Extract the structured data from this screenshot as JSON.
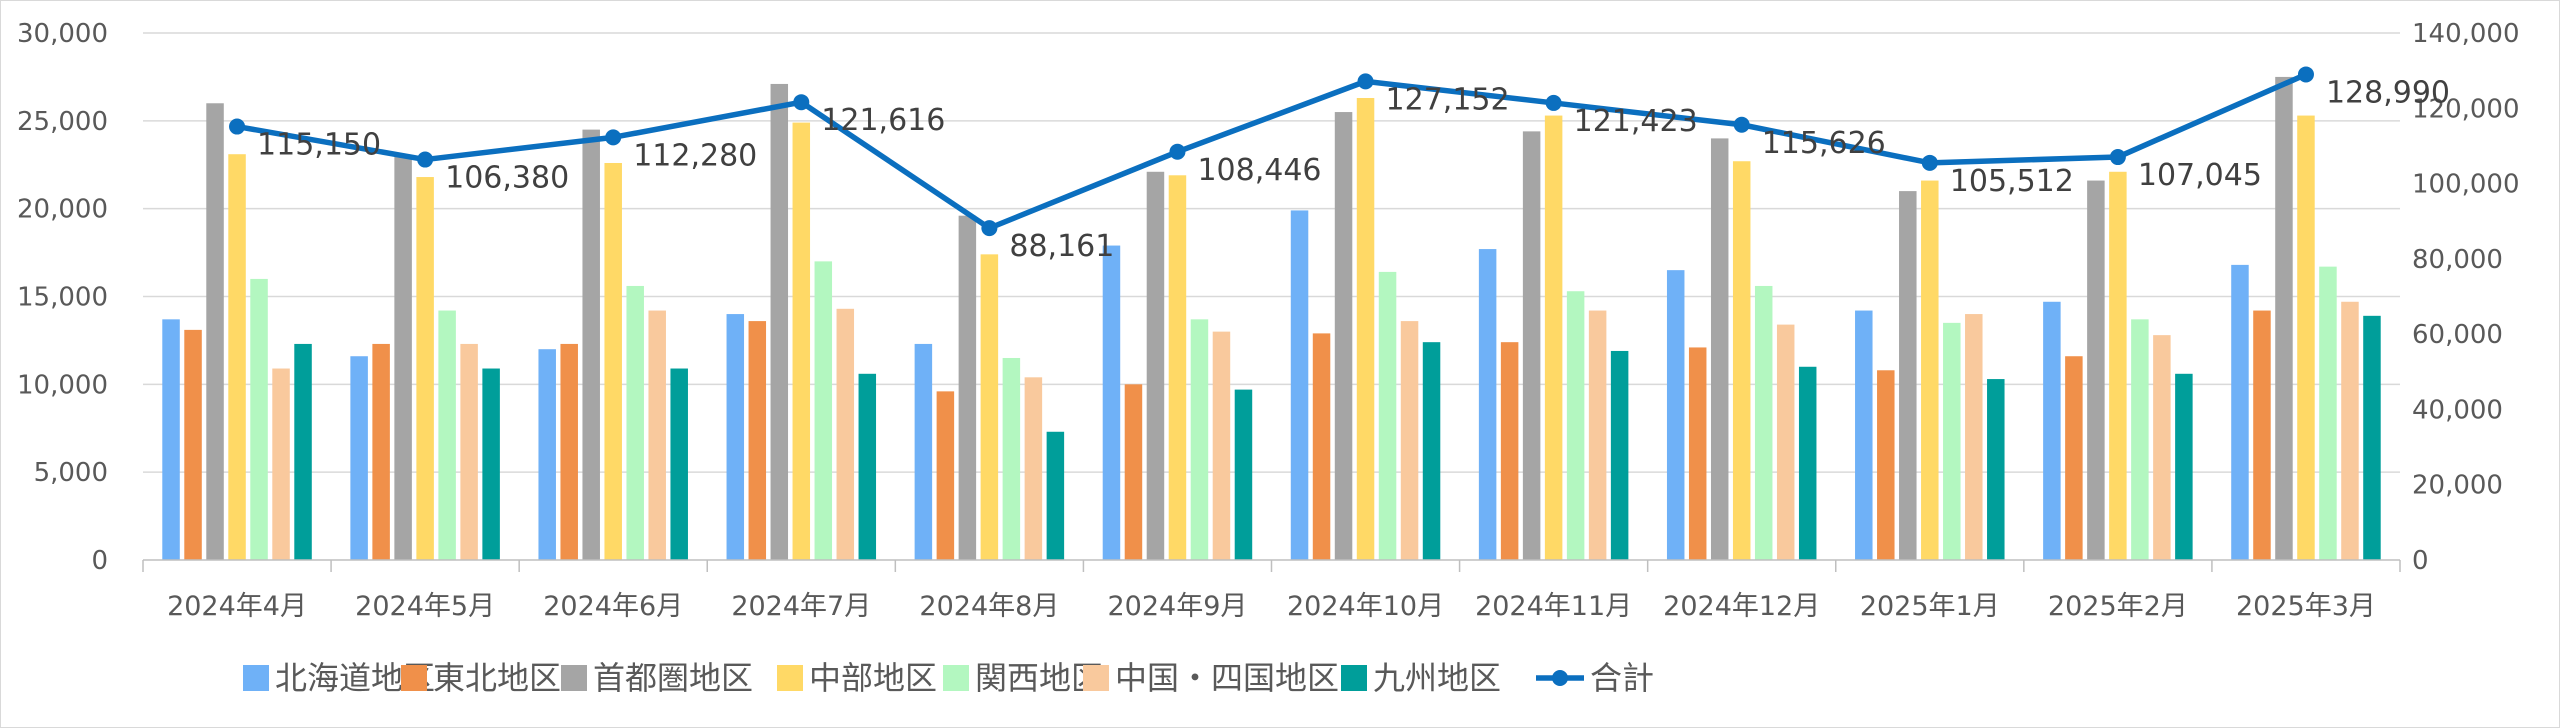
{
  "chart_data": {
    "type": "bar",
    "categories": [
      "2024年4月",
      "2024年5月",
      "2024年6月",
      "2024年7月",
      "2024年8月",
      "2024年9月",
      "2024年10月",
      "2024年11月",
      "2024年12月",
      "2025年1月",
      "2025年2月",
      "2025年3月"
    ],
    "series": [
      {
        "name": "北海道地区",
        "color": "#6FB1F7",
        "values": [
          13700,
          11600,
          12000,
          14000,
          12300,
          17900,
          19900,
          17700,
          16500,
          14200,
          14700,
          16800
        ]
      },
      {
        "name": "東北地区",
        "color": "#F0904A",
        "values": [
          13100,
          12300,
          12300,
          13600,
          9600,
          10000,
          12900,
          12400,
          12100,
          10800,
          11600,
          14200
        ]
      },
      {
        "name": "首都圏地区",
        "color": "#A5A5A5",
        "values": [
          26000,
          23000,
          24500,
          27100,
          19600,
          22100,
          25500,
          24400,
          24000,
          21000,
          21600,
          27500
        ]
      },
      {
        "name": "中部地区",
        "color": "#FFD966",
        "values": [
          23100,
          21800,
          22600,
          24900,
          17400,
          21900,
          26300,
          25300,
          22700,
          21600,
          22100,
          25300
        ]
      },
      {
        "name": "関西地区",
        "color": "#B3F7C0",
        "values": [
          16000,
          14200,
          15600,
          17000,
          11500,
          13700,
          16400,
          15300,
          15600,
          13500,
          13700,
          16700
        ]
      },
      {
        "name": "中国・四国地区",
        "color": "#F9C99D",
        "values": [
          10900,
          12300,
          14200,
          14300,
          10400,
          13000,
          13600,
          14200,
          13400,
          14000,
          12800,
          14700
        ]
      },
      {
        "name": "九州地区",
        "color": "#009E9A",
        "values": [
          12300,
          10900,
          10900,
          10600,
          7300,
          9700,
          12400,
          11900,
          11000,
          10300,
          10600,
          13900
        ]
      }
    ],
    "line_series": {
      "name": "合計",
      "color": "#0B6FBF",
      "axis": "right",
      "values": [
        115150,
        106380,
        112280,
        121616,
        88161,
        108446,
        127152,
        121423,
        115626,
        105512,
        107045,
        128990
      ],
      "labels": [
        "115,150",
        "106,380",
        "112,280",
        "121,616",
        "88,161",
        "108,446",
        "127,152",
        "121,423",
        "115,626",
        "105,512",
        "107,045",
        "128,990"
      ]
    },
    "y_left": {
      "min": 0,
      "max": 30000,
      "step": 5000,
      "ticks": [
        "0",
        "5,000",
        "10,000",
        "15,000",
        "20,000",
        "25,000",
        "30,000"
      ]
    },
    "y_right": {
      "min": 0,
      "max": 140000,
      "step": 20000,
      "ticks": [
        "0",
        "20,000",
        "40,000",
        "60,000",
        "80,000",
        "100,000",
        "120,000",
        "140,000"
      ]
    },
    "grid": true,
    "legend_position": "bottom"
  }
}
